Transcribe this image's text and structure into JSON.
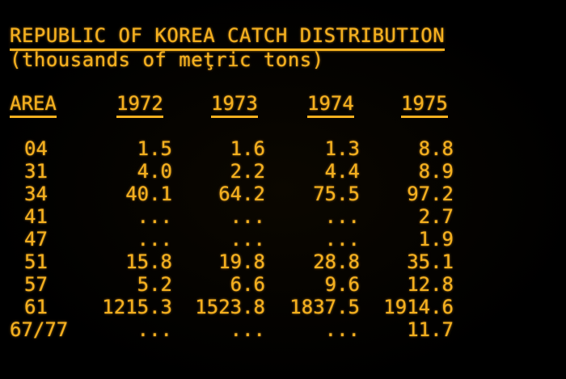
{
  "title": "REPUBLIC OF KOREA CATCH DISTRIBUTION",
  "subtitle": "(thousands of meţric tons)",
  "headers": {
    "area": "AREA",
    "y1972": "1972",
    "y1973": "1973",
    "y1974": "1974",
    "y1975": "1975"
  },
  "rows": [
    {
      "area": "04",
      "v1972": "1.5",
      "v1973": "1.6",
      "v1974": "1.3",
      "v1975": "8.8"
    },
    {
      "area": "31",
      "v1972": "4.0",
      "v1973": "2.2",
      "v1974": "4.4",
      "v1975": "8.9"
    },
    {
      "area": "34",
      "v1972": "40.1",
      "v1973": "64.2",
      "v1974": "75.5",
      "v1975": "97.2"
    },
    {
      "area": "41",
      "v1972": "...",
      "v1973": "...",
      "v1974": "...",
      "v1975": "2.7"
    },
    {
      "area": "47",
      "v1972": "...",
      "v1973": "...",
      "v1974": "...",
      "v1975": "1.9"
    },
    {
      "area": "51",
      "v1972": "15.8",
      "v1973": "19.8",
      "v1974": "28.8",
      "v1975": "35.1"
    },
    {
      "area": "57",
      "v1972": "5.2",
      "v1973": "6.6",
      "v1974": "9.6",
      "v1975": "12.8"
    },
    {
      "area": "61",
      "v1972": "1215.3",
      "v1973": "1523.8",
      "v1974": "1837.5",
      "v1975": "1914.6"
    },
    {
      "area": "67/77",
      "v1972": "...",
      "v1973": "...",
      "v1974": "...",
      "v1975": "11.7"
    }
  ],
  "colors": {
    "text": "#f5b01e",
    "background": "#000000"
  }
}
